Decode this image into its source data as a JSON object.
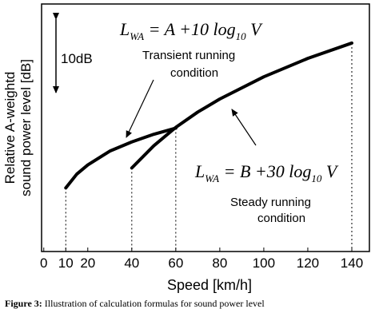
{
  "chart_data": {
    "type": "line",
    "ylabel": [
      "Relative A-weightd",
      "sound power level [dB]"
    ],
    "xlabel": "Speed [km/h]",
    "xlim": [
      -1,
      148
    ],
    "xticks": [
      0,
      10,
      20,
      40,
      60,
      80,
      100,
      120,
      140
    ],
    "ylim": [
      0,
      32.3
    ],
    "series": [
      {
        "color": "#000000",
        "x": [
          10,
          15,
          20,
          30,
          40,
          50,
          60
        ],
        "values": [
          8.3,
          10.1,
          11.3,
          13.1,
          14.3,
          15.3,
          16.1
        ]
      },
      {
        "color": "#000000",
        "x": [
          40,
          50,
          60,
          70,
          80,
          100,
          120,
          140
        ],
        "values": [
          10.9,
          13.8,
          16.2,
          18.2,
          19.9,
          22.8,
          25.2,
          27.2
        ]
      }
    ],
    "annotations": {
      "formula_a": [
        "L",
        "WA",
        " = A  +10 log",
        "10",
        " V"
      ],
      "transient": [
        "Transient running",
        "condition"
      ],
      "formula_b": [
        "L",
        "WA",
        " = B  +30 log",
        "10",
        " V"
      ],
      "steady": [
        "Steady running",
        "condition"
      ],
      "scale": "10dB"
    },
    "caption": {
      "label": "Figure 3:",
      "text": "Illustration of calculation formulas for sound power level"
    }
  }
}
